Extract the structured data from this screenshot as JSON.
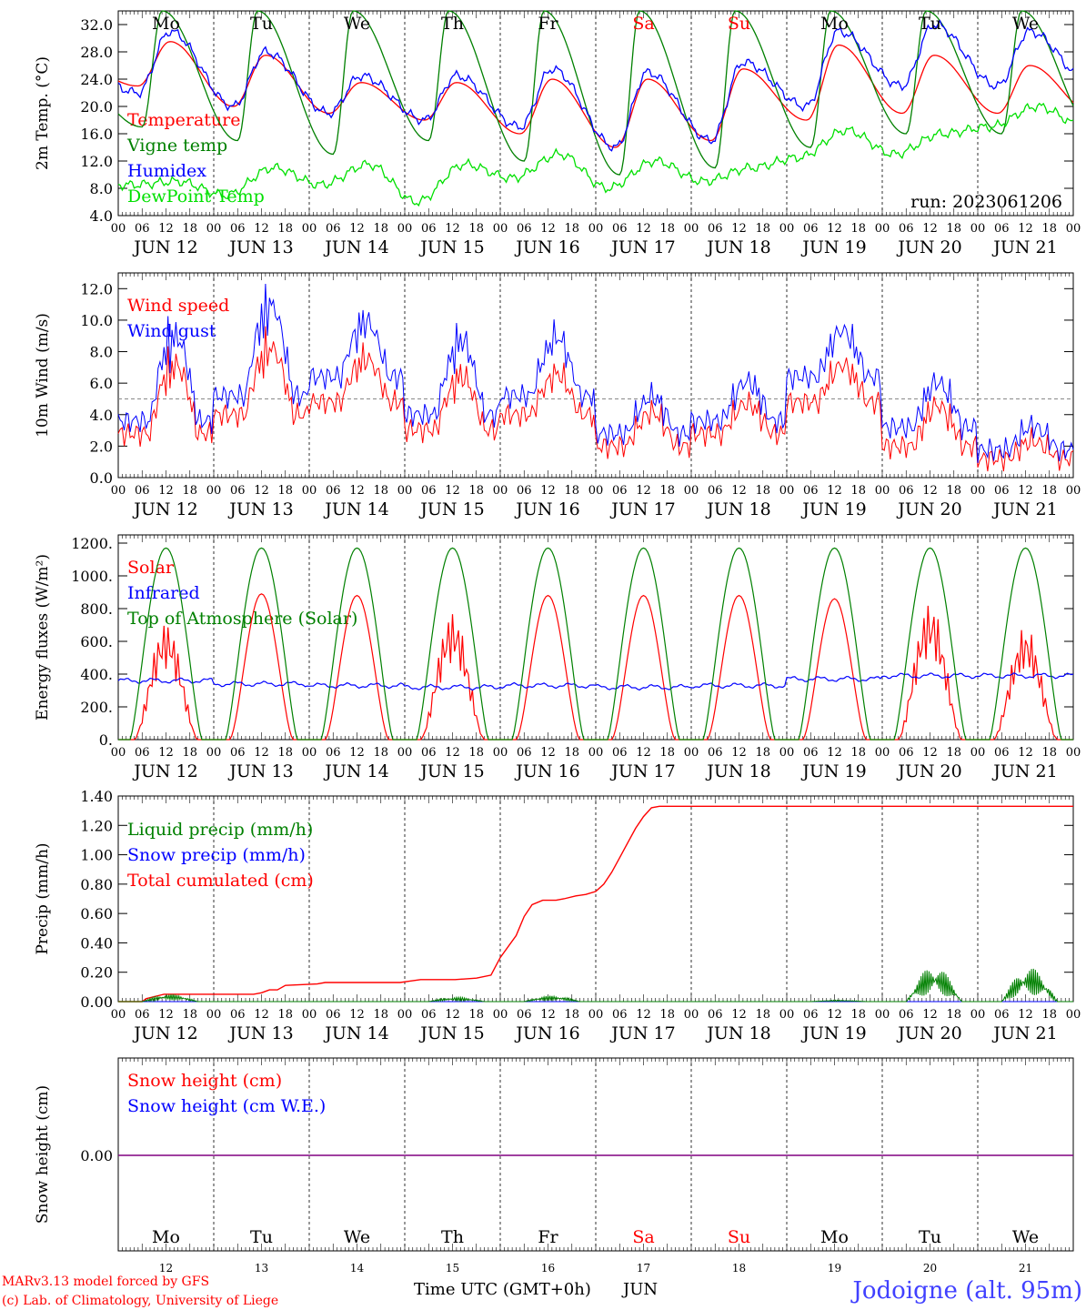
{
  "days": [
    "12",
    "13",
    "14",
    "15",
    "16",
    "17",
    "18",
    "19",
    "20",
    "21"
  ],
  "date_labels": [
    "JUN 12",
    "JUN 13",
    "JUN 14",
    "JUN 15",
    "JUN 16",
    "JUN 17",
    "JUN 18",
    "JUN 19",
    "JUN 20",
    "JUN 21"
  ],
  "weekdays": [
    "Mo",
    "Tu",
    "We",
    "Th",
    "Fr",
    "Sa",
    "Su",
    "Mo",
    "Tu",
    "We"
  ],
  "weekend_indices": [
    5,
    6
  ],
  "hour_ticks": [
    "00",
    "06",
    "12",
    "18"
  ],
  "final_hour_label": "00",
  "run_label": "run: 2023061206",
  "footer": {
    "model": "MARv3.13 model forced by GFS",
    "copyright": "(c) Lab. of Climatology, University of Liege",
    "xlabel": "Time UTC (GMT+0h)",
    "month": "JUN",
    "station": "Jodoigne (alt. 95m)"
  },
  "colors": {
    "red": "#ff0000",
    "green": "#008000",
    "blue": "#0000ff",
    "lightgreen": "#00e000",
    "purple": "#800080",
    "station": "#4040ff"
  },
  "chart_data": [
    {
      "type": "line",
      "ylabel": "2m Temp. (°C)",
      "ylim": [
        4,
        34
      ],
      "yticks": [
        "4.0",
        "8.0",
        "12.0",
        "16.0",
        "20.0",
        "24.0",
        "28.0",
        "32.0"
      ],
      "legend": [
        "Temperature",
        "Vigne temp",
        "Humidex",
        "DewPoint Temp"
      ],
      "series": [
        {
          "name": "Temperature",
          "color": "red",
          "tmin": [
            23,
            20,
            19,
            18,
            16,
            14,
            15,
            18,
            19,
            19
          ],
          "tmax": [
            29.5,
            27.5,
            23.5,
            23.5,
            24,
            24,
            25.5,
            29,
            27.5,
            26
          ]
        },
        {
          "name": "Vigne temp",
          "color": "green",
          "tmin": [
            17,
            15,
            13,
            15,
            12,
            10,
            11,
            14,
            16,
            16
          ],
          "tmax": [
            34,
            34,
            34,
            34,
            34,
            34,
            34,
            34,
            34,
            34
          ]
        },
        {
          "name": "Humidex",
          "color": "blue",
          "tmin": [
            22,
            20,
            19,
            18,
            17,
            14,
            15,
            20,
            23,
            23
          ],
          "tmax": [
            31,
            28,
            24.5,
            24.5,
            25.5,
            25,
            26.5,
            31,
            32,
            31
          ]
        },
        {
          "name": "DewPoint Temp",
          "color": "lightgreen",
          "tmin": [
            8.5,
            7,
            8.5,
            6,
            9.5,
            8,
            9,
            12.5,
            13,
            17
          ],
          "tmax": [
            9,
            11,
            11.5,
            11.5,
            13,
            12,
            11,
            16.5,
            16,
            20
          ]
        }
      ]
    },
    {
      "type": "line",
      "ylabel": "10m Wind (m/s)",
      "ylim": [
        0,
        13
      ],
      "yticks": [
        "0.0",
        "2.0",
        "4.0",
        "6.0",
        "8.0",
        "10.0",
        "12.0"
      ],
      "reference_line": 5,
      "legend": [
        "Wind speed",
        "Wind gust"
      ],
      "series": [
        {
          "name": "Wind speed",
          "color": "red",
          "daily_mean": [
            3.5,
            5,
            6,
            3.8,
            5,
            2.5,
            3.5,
            6,
            2.5,
            1.5
          ],
          "daily_peak": [
            8,
            9,
            8,
            7,
            7,
            4.5,
            5,
            7.5,
            5,
            2.5
          ]
        },
        {
          "name": "Wind gust",
          "color": "blue",
          "daily_mean": [
            4.5,
            6.5,
            8,
            5,
            6.5,
            3.5,
            4.5,
            8,
            4,
            2.2
          ],
          "daily_peak": [
            10,
            12,
            10.5,
            9.5,
            9.5,
            5.5,
            6.5,
            9.8,
            6.5,
            3.5
          ]
        }
      ]
    },
    {
      "type": "line",
      "ylabel": "Energy fluxes (W/m²)",
      "ylim": [
        0,
        1250
      ],
      "yticks": [
        "0.",
        "200.",
        "400.",
        "600.",
        "800.",
        "1000.",
        "1200."
      ],
      "legend": [
        "Solar",
        "Infrared",
        "Top of Atmosphere (Solar)"
      ],
      "series": [
        {
          "name": "Solar",
          "color": "red",
          "daily_peak": [
            720,
            890,
            880,
            780,
            880,
            880,
            880,
            860,
            840,
            690
          ]
        },
        {
          "name": "Infrared",
          "color": "blue",
          "daily_mean": [
            360,
            340,
            330,
            320,
            330,
            320,
            330,
            370,
            390,
            390
          ]
        },
        {
          "name": "Top of Atmosphere (Solar)",
          "color": "green",
          "daily_peak": [
            1170,
            1170,
            1170,
            1170,
            1170,
            1170,
            1170,
            1170,
            1170,
            1170
          ]
        }
      ]
    },
    {
      "type": "line",
      "ylabel": "Precip (mm/h)",
      "ylim": [
        0,
        1.4
      ],
      "yticks": [
        "0.00",
        "0.20",
        "0.40",
        "0.60",
        "0.80",
        "1.00",
        "1.20",
        "1.40"
      ],
      "legend": [
        "Liquid precip (mm/h)",
        "Snow precip (mm/h)",
        "Total cumulated (cm)"
      ],
      "series": [
        {
          "name": "Total cumulated (cm)",
          "color": "red",
          "x_hours": [
            0,
            36,
            42,
            60,
            69,
            114,
            114,
            120,
            132,
            165,
            204,
            216,
            222,
            228,
            237,
            240,
            252,
            300,
            312,
            324,
            342,
            348,
            360,
            384,
            402,
            414,
            425,
            440,
            456,
            470,
            490,
            508,
            540,
            562,
            576,
            600,
            612,
            624,
            640,
            660,
            672,
            690,
            705,
            720,
            732,
            744,
            756,
            768,
            780,
            792,
            804,
            816,
            828,
            840,
            852,
            864,
            876,
            888,
            900,
            912,
            924,
            936,
            948,
            960,
            972,
            984,
            996,
            1008,
            1020,
            1032,
            1044,
            1056,
            1068,
            1080,
            1092,
            1104,
            1116,
            1128,
            1140,
            1152,
            1164,
            1176,
            1188,
            1200,
            1212,
            1224,
            1236,
            1248,
            1260,
            1272,
            1284,
            1296,
            1308,
            1320,
            1332,
            1344,
            1356,
            1368,
            1380,
            1392,
            1404,
            1416,
            1428,
            1440
          ],
          "values": [
            0,
            0,
            0.02,
            0.04,
            0.05,
            0.05,
            0.05,
            0.05,
            0.05,
            0.05,
            0.05,
            0.06,
            0.07,
            0.08,
            0.08,
            0.08,
            0.11,
            0.12,
            0.13,
            0.13,
            0.13,
            0.13,
            0.13,
            0.13,
            0.13,
            0.13,
            0.13,
            0.14,
            0.15,
            0.15,
            0.15,
            0.15,
            0.16,
            0.18,
            0.3,
            0.45,
            0.58,
            0.66,
            0.69,
            0.69,
            0.7,
            0.72,
            0.73,
            0.75,
            0.8,
            0.88,
            0.98,
            1.08,
            1.18,
            1.26,
            1.32,
            1.33,
            1.33,
            1.33,
            1.33,
            1.33,
            1.33,
            1.33,
            1.33,
            1.33,
            1.33,
            1.33,
            1.33,
            1.33,
            1.33,
            1.33,
            1.33,
            1.33,
            1.33,
            1.33,
            1.33,
            1.33,
            1.33,
            1.33,
            1.33,
            1.33,
            1.33,
            1.33,
            1.33,
            1.33,
            1.33,
            1.33,
            1.33,
            1.33,
            1.33,
            1.33,
            1.33,
            1.33,
            1.33,
            1.33,
            1.33,
            1.33,
            1.33,
            1.33,
            1.33,
            1.33,
            1.33,
            1.33,
            1.33,
            1.33,
            1.33,
            1.33,
            1.33,
            1.33
          ]
        },
        {
          "name": "Liquid precip (mm/h)",
          "color": "green",
          "daily_peak": [
            0.05,
            0,
            0,
            0.03,
            0.04,
            0,
            0,
            0.01,
            0.24,
            0.23
          ]
        },
        {
          "name": "Snow precip (mm/h)",
          "color": "blue",
          "daily_peak": [
            0,
            0,
            0,
            0,
            0,
            0,
            0,
            0,
            0,
            0
          ]
        }
      ]
    },
    {
      "type": "line",
      "ylabel": "Snow height (cm)",
      "ytick": "0.00",
      "legend": [
        "Snow height (cm)",
        "Snow height (cm W.E.)"
      ],
      "series": [
        {
          "name": "Snow height (cm)",
          "color": "red",
          "values": [
            0,
            0,
            0,
            0,
            0,
            0,
            0,
            0,
            0,
            0
          ]
        },
        {
          "name": "Snow height (cm W.E.)",
          "color": "blue",
          "values": [
            0,
            0,
            0,
            0,
            0,
            0,
            0,
            0,
            0,
            0
          ]
        }
      ]
    }
  ]
}
